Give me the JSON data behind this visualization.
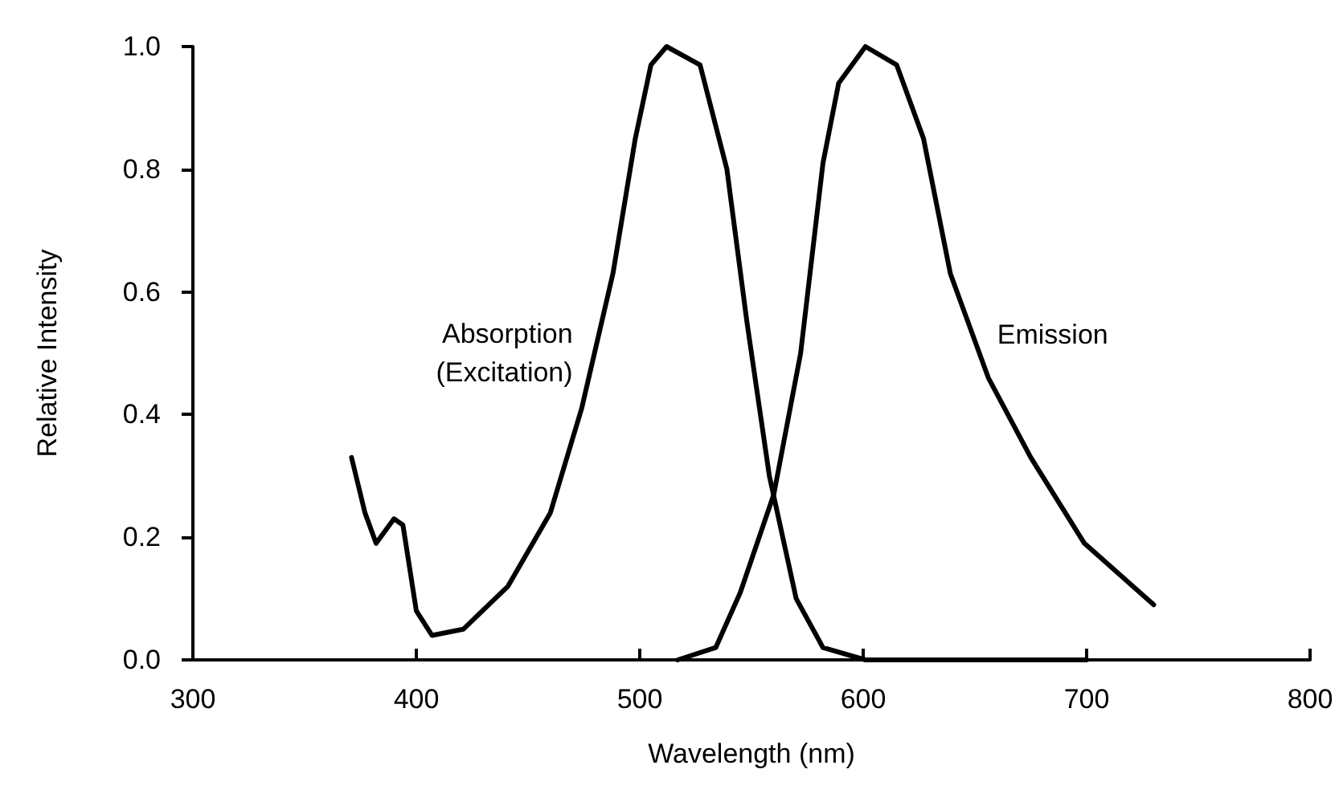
{
  "chart_data": {
    "type": "line",
    "xlabel": "Wavelength (nm)",
    "ylabel": "Relative Intensity",
    "xlim": [
      300,
      800
    ],
    "xticks": [
      300,
      400,
      500,
      600,
      700,
      800
    ],
    "ylim": [
      0,
      1
    ],
    "yticks": [
      {
        "value": 0,
        "label": "0.0"
      },
      {
        "value": 0.2,
        "label": "0.2"
      },
      {
        "value": 0.4,
        "label": "0.4"
      },
      {
        "value": 0.6,
        "label": "0.6"
      },
      {
        "value": 0.8,
        "label": "0.8"
      },
      {
        "value": 1,
        "label": "1.0"
      }
    ],
    "grid": false,
    "legend": false,
    "marker": "none",
    "line_style": "solid",
    "series": [
      {
        "name": "Absorption\n(Excitation)",
        "color": "#000000",
        "x": [
          371,
          377,
          382,
          386,
          390,
          394,
          400,
          407,
          421,
          441,
          460,
          474,
          488,
          498,
          505,
          512,
          527,
          539,
          548,
          558,
          570,
          582,
          601,
          700
        ],
        "values": [
          0.33,
          0.24,
          0.19,
          0.21,
          0.23,
          0.22,
          0.08,
          0.04,
          0.05,
          0.12,
          0.24,
          0.41,
          0.63,
          0.85,
          0.97,
          1.0,
          0.97,
          0.8,
          0.55,
          0.3,
          0.1,
          0.02,
          0.0,
          0.0
        ]
      },
      {
        "name": "Emission",
        "color": "#000000",
        "x": [
          517,
          534,
          545,
          560,
          572,
          582,
          589,
          601,
          615,
          627,
          639,
          656,
          675,
          699,
          730
        ],
        "values": [
          0.0,
          0.02,
          0.11,
          0.27,
          0.5,
          0.81,
          0.94,
          1.0,
          0.97,
          0.85,
          0.63,
          0.46,
          0.33,
          0.19,
          0.09
        ]
      }
    ]
  }
}
